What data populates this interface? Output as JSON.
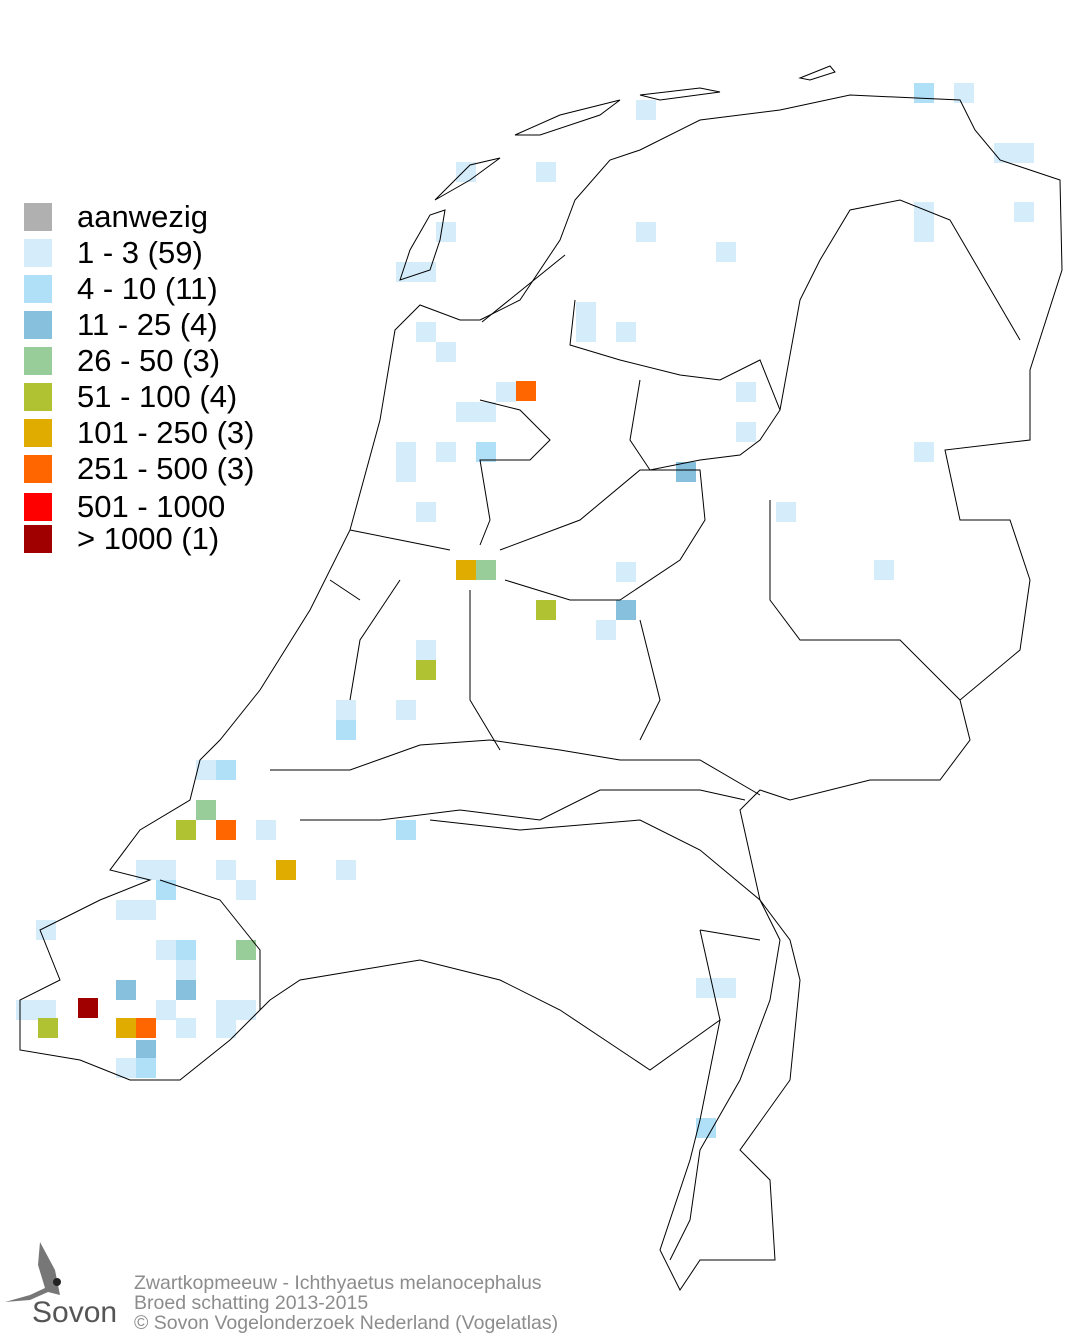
{
  "legend": {
    "items": [
      {
        "label": "aanwezig",
        "color": "#b0b0b0"
      },
      {
        "label": "1 - 3 (59)",
        "color": "#d5ecfa"
      },
      {
        "label": "4 - 10 (11)",
        "color": "#b0e0f8"
      },
      {
        "label": "11 - 25 (4)",
        "color": "#86c0dd"
      },
      {
        "label": "26 - 50 (3)",
        "color": "#98cc98"
      },
      {
        "label": "51 - 100 (4)",
        "color": "#b0c232"
      },
      {
        "label": "101 - 250 (3)",
        "color": "#e0ac00"
      },
      {
        "label": "251 - 500 (3)",
        "color": "#ff6600"
      },
      {
        "label": "501 - 1000",
        "color": "#ff0000"
      },
      {
        "label": "> 1000 (1)",
        "color": "#a00000"
      }
    ]
  },
  "footer": {
    "species": "Zwartkopmeeuw - Ichthyaetus melanocephalus",
    "subtitle": "Broed schatting 2013-2015",
    "copyright": "© Sovon Vogelonderzoek Nederland (Vogelatlas)"
  },
  "logo": {
    "text": "Sovon"
  }
}
